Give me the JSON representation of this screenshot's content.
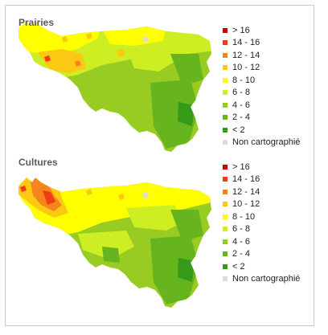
{
  "legend_items": [
    {
      "label": "> 16",
      "color": "#cc0000"
    },
    {
      "label": "14 - 16",
      "color": "#f03c14"
    },
    {
      "label": "12 - 14",
      "color": "#f6841c"
    },
    {
      "label": "10 - 12",
      "color": "#fcc814"
    },
    {
      "label": "8 - 10",
      "color": "#ffff00"
    },
    {
      "label": "6 - 8",
      "color": "#ccee22"
    },
    {
      "label": "4 - 6",
      "color": "#99cc22"
    },
    {
      "label": "2 - 4",
      "color": "#66b41e"
    },
    {
      "label": "< 2",
      "color": "#339a1a"
    },
    {
      "label": "Non cartographié",
      "color": "#dcdcdc"
    }
  ],
  "maps": [
    {
      "title": "Prairies",
      "legend": "legend_items"
    },
    {
      "title": "Cultures",
      "legend": "legend_items"
    }
  ]
}
